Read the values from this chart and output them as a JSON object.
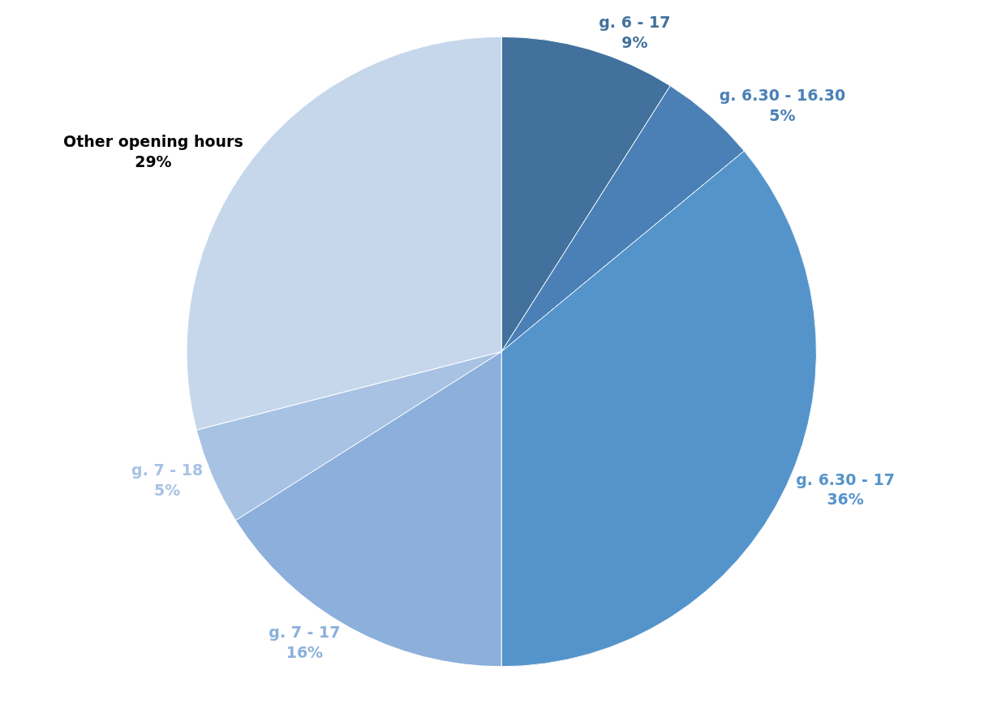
{
  "chart_data": {
    "type": "pie",
    "categories": [
      "g. 6 - 17",
      "g. 6.30 - 16.30",
      "g. 6.30 - 17",
      "g. 7 - 17",
      "g. 7 - 18",
      "Other opening hours"
    ],
    "values": [
      9,
      5,
      36,
      16,
      5,
      29
    ],
    "value_labels": [
      "9%",
      "5%",
      "36%",
      "16%",
      "5%",
      "29%"
    ],
    "colors": [
      "#41719c",
      "#4a80b6",
      "#5594cb",
      "#8cb0db",
      "#a7c2e3",
      "#c6d7ec"
    ],
    "legend": false
  }
}
